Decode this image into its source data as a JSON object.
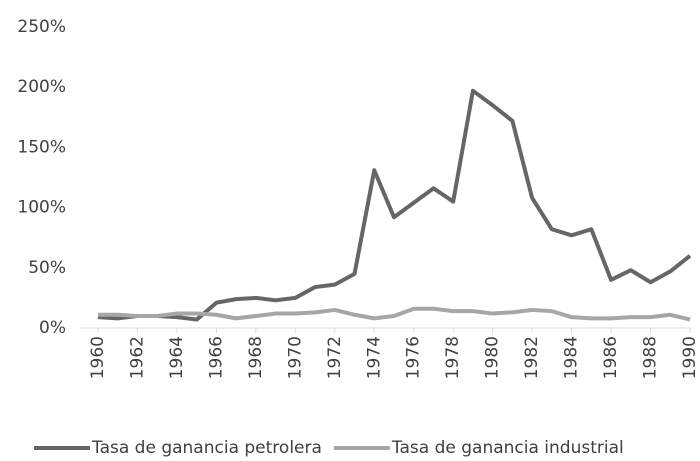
{
  "chart_data": {
    "type": "line",
    "x": [
      1960,
      1961,
      1962,
      1963,
      1964,
      1965,
      1966,
      1967,
      1968,
      1969,
      1970,
      1971,
      1972,
      1973,
      1974,
      1975,
      1976,
      1977,
      1978,
      1979,
      1980,
      1981,
      1982,
      1983,
      1984,
      1985,
      1986,
      1987,
      1988,
      1989,
      1990
    ],
    "series": [
      {
        "name": "Tasa de ganancia petrolera",
        "color": "#666666",
        "values": [
          9,
          8,
          10,
          10,
          9,
          7,
          21,
          24,
          25,
          23,
          25,
          34,
          36,
          45,
          131,
          92,
          104,
          116,
          105,
          197,
          185,
          172,
          108,
          82,
          77,
          82,
          40,
          48,
          38,
          47,
          60
        ]
      },
      {
        "name": "Tasa de ganancia industrial",
        "color": "#a6a6a6",
        "values": [
          11,
          11,
          10,
          10,
          12,
          12,
          11,
          8,
          10,
          12,
          12,
          13,
          15,
          11,
          8,
          10,
          16,
          16,
          14,
          14,
          12,
          13,
          15,
          14,
          9,
          8,
          8,
          9,
          9,
          11,
          7
        ]
      }
    ],
    "xlim": [
      1960,
      1990
    ],
    "xticks": [
      1960,
      1962,
      1964,
      1966,
      1968,
      1970,
      1972,
      1974,
      1976,
      1978,
      1980,
      1982,
      1984,
      1986,
      1988,
      1990
    ],
    "ylim": [
      0,
      250
    ],
    "yticks": [
      {
        "value": 0,
        "label": "0%"
      },
      {
        "value": 50,
        "label": "50%"
      },
      {
        "value": 100,
        "label": "100%"
      },
      {
        "value": 150,
        "label": "150%"
      },
      {
        "value": 200,
        "label": "200%"
      },
      {
        "value": 250,
        "label": "250%"
      }
    ],
    "grid": false,
    "legend": "bottom"
  }
}
